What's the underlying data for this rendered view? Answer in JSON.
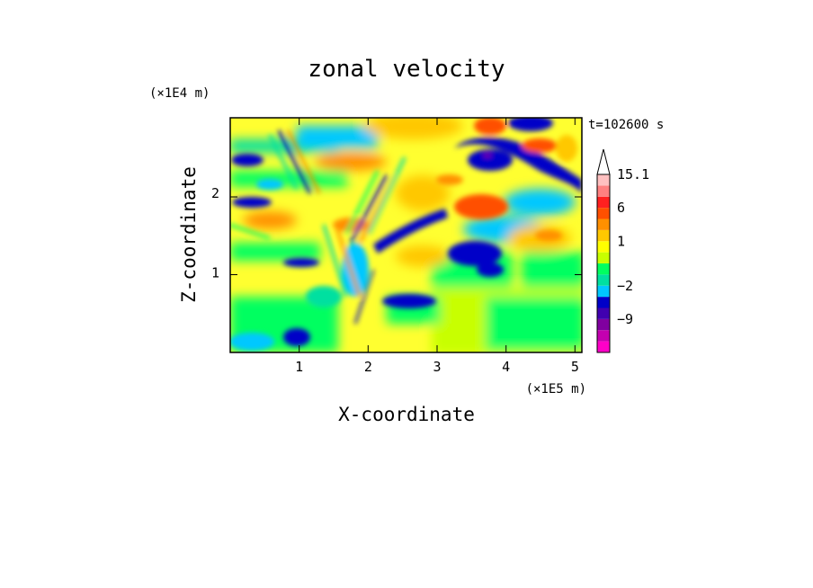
{
  "chart_data": {
    "type": "heatmap",
    "title": "zonal velocity",
    "time_label": "t=102600 s",
    "xlabel": "X-coordinate",
    "ylabel": "Z-coordinate",
    "x_unit": "(×1E5 m)",
    "y_unit": "(×1E4 m)",
    "xlim": [
      0,
      5.1
    ],
    "ylim": [
      0,
      2.95
    ],
    "x_ticks": [
      1,
      2,
      3,
      4,
      5
    ],
    "y_ticks": [
      1,
      2
    ],
    "colorbar": {
      "levels": [
        "−15",
        "−12",
        "−9",
        "−6",
        "−4",
        "−2",
        "−1",
        "0",
        "0.5",
        "1",
        "1.5",
        "3",
        "6",
        "9",
        "12",
        "15.1"
      ],
      "labels": [
        "15.1",
        "6",
        "1",
        "−2",
        "−9"
      ],
      "colors": [
        "#ff00c8",
        "#c400b0",
        "#8000a0",
        "#4000b0",
        "#0000c8",
        "#00c8ff",
        "#00e0a0",
        "#00ff60",
        "#c8ff00",
        "#ffff00",
        "#ffc800",
        "#ff9000",
        "#ff5000",
        "#ff2020",
        "#ff8080",
        "#ffc0c0"
      ]
    },
    "features": [
      {
        "x": 0.1,
        "z": 2.4,
        "value": -6
      },
      {
        "x": 0.6,
        "z": 1.8,
        "value": -4
      },
      {
        "x": 0.9,
        "z": 1.25,
        "value": -6
      },
      {
        "x": 1.4,
        "z": 2.7,
        "value": -4
      },
      {
        "x": 2.5,
        "z": 1.6,
        "value": -9
      },
      {
        "x": 2.6,
        "z": 0.65,
        "value": -6
      },
      {
        "x": 3.6,
        "z": 1.4,
        "value": -6
      },
      {
        "x": 3.6,
        "z": 2.45,
        "value": -9
      },
      {
        "x": 4.1,
        "z": 2.85,
        "value": -9
      },
      {
        "x": 4.7,
        "z": 2.25,
        "value": -6
      },
      {
        "x": 3.8,
        "z": 1.9,
        "value": 6
      },
      {
        "x": 3.7,
        "z": 2.8,
        "value": 6
      },
      {
        "x": 4.4,
        "z": 2.6,
        "value": 6
      },
      {
        "x": 4.6,
        "z": 2.8,
        "value": 3
      },
      {
        "x": 1.6,
        "z": 2.4,
        "value": 3
      },
      {
        "x": 4.5,
        "z": 1.45,
        "value": 3
      },
      {
        "x": 4.3,
        "z": 0.4,
        "value": 0
      },
      {
        "x": 0.5,
        "z": 0.7,
        "value": 1
      }
    ]
  }
}
